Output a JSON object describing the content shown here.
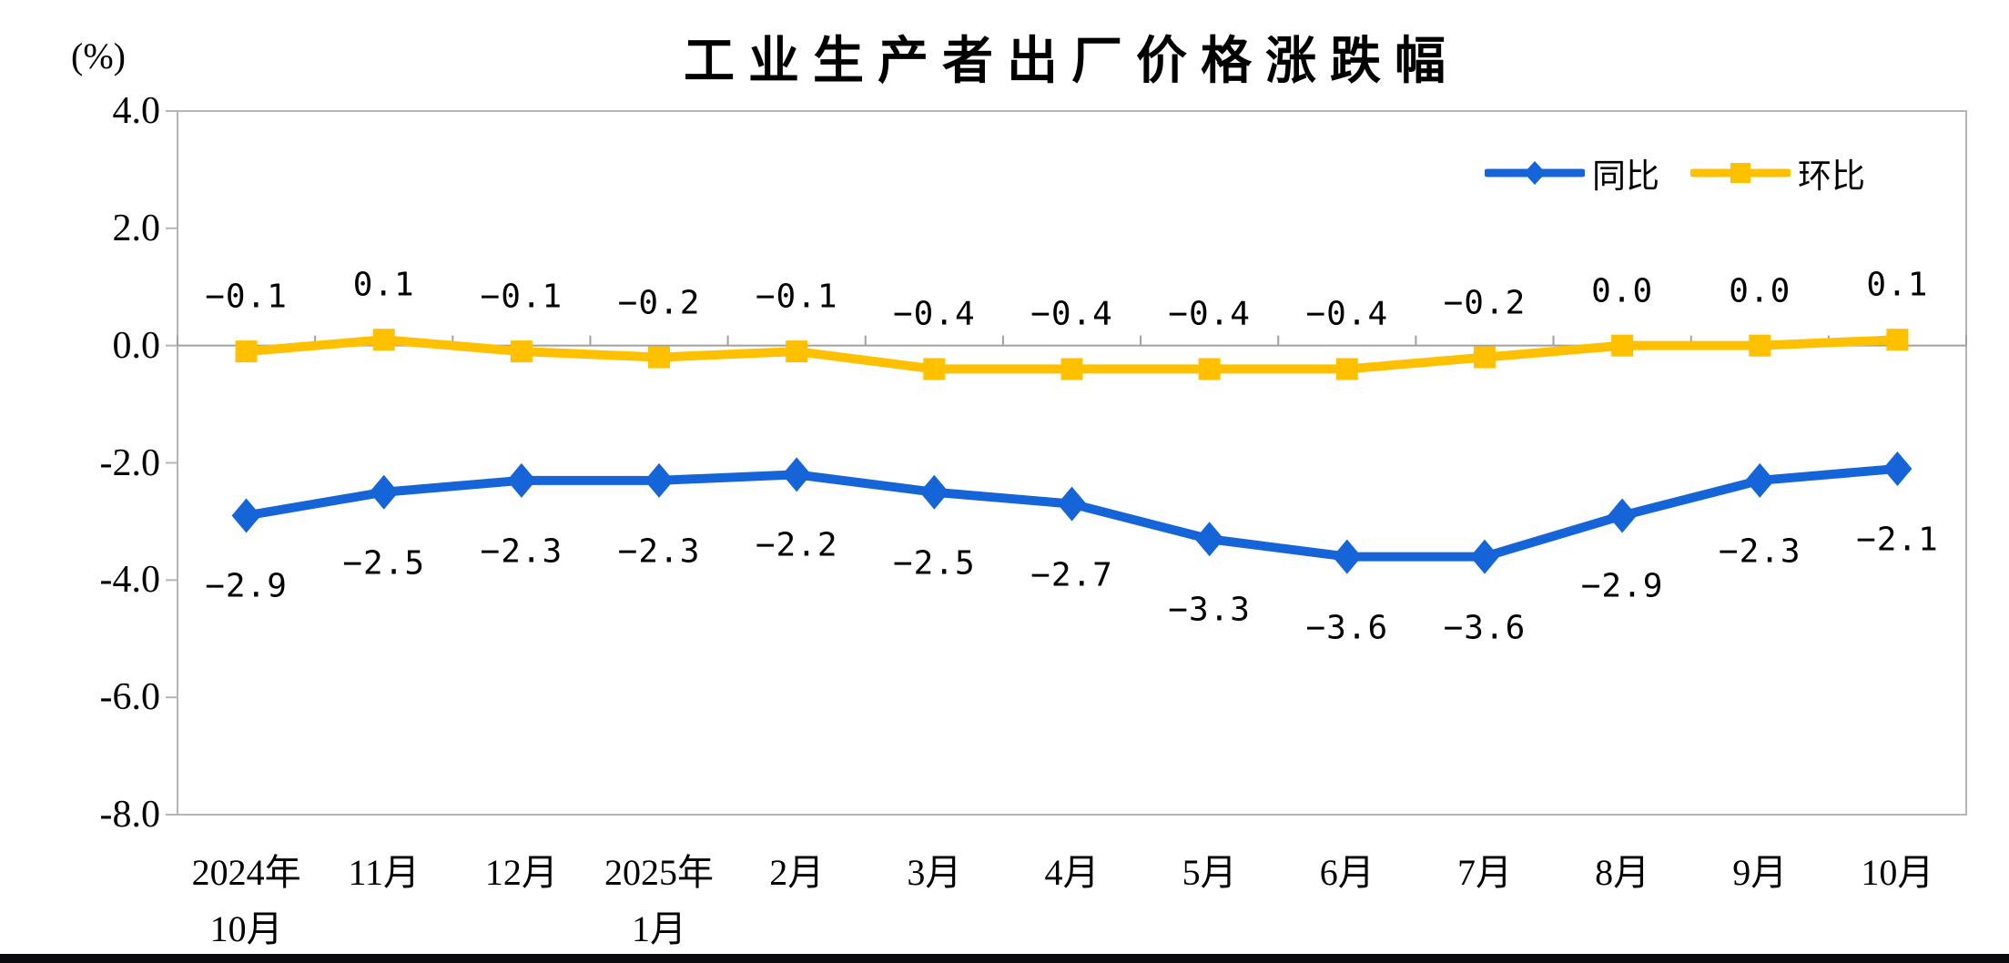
{
  "chart_data": {
    "type": "line",
    "title": "工业生产者出厂价格涨跌幅",
    "unit_label": "(%)",
    "categories": [
      "2024年\n10月",
      "11月",
      "12月",
      "2025年\n1月",
      "2月",
      "3月",
      "4月",
      "5月",
      "6月",
      "7月",
      "8月",
      "9月",
      "10月"
    ],
    "ytick_labels": [
      "4.0",
      "2.0",
      "0.0",
      "-2.0",
      "-4.0",
      "-6.0",
      "-8.0"
    ],
    "yticks": [
      4.0,
      2.0,
      0.0,
      -2.0,
      -4.0,
      -6.0,
      -8.0
    ],
    "ylim": [
      -8.0,
      4.0
    ],
    "grid": "zero-line-only",
    "legend_position": "top-right-inside",
    "series": [
      {
        "name": "同比",
        "color": "#1565D8",
        "marker": "diamond",
        "label_side": "below",
        "values": [
          -2.9,
          -2.5,
          -2.3,
          -2.3,
          -2.2,
          -2.5,
          -2.7,
          -3.3,
          -3.6,
          -3.6,
          -2.9,
          -2.3,
          -2.1
        ],
        "label_texts": [
          "−2.9",
          "−2.5",
          "−2.3",
          "−2.3",
          "−2.2",
          "−2.5",
          "−2.7",
          "−3.3",
          "−3.6",
          "−3.6",
          "−2.9",
          "−2.3",
          "−2.1"
        ]
      },
      {
        "name": "环比",
        "color": "#FFC000",
        "marker": "square",
        "label_side": "above",
        "values": [
          -0.1,
          0.1,
          -0.1,
          -0.2,
          -0.1,
          -0.4,
          -0.4,
          -0.4,
          -0.4,
          -0.2,
          0.0,
          0.0,
          0.1
        ],
        "label_texts": [
          "−0.1",
          "0.1",
          "−0.1",
          "−0.2",
          "−0.1",
          "−0.4",
          "−0.4",
          "−0.4",
          "−0.4",
          "−0.2",
          "0.0",
          "0.0",
          "0.1"
        ]
      }
    ]
  }
}
